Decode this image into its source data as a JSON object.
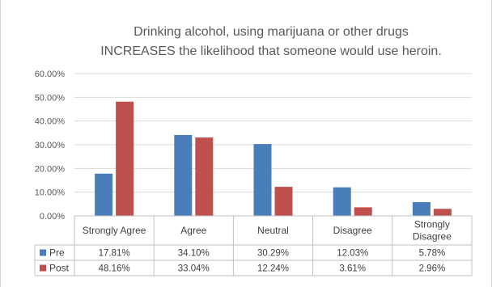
{
  "chart_data": {
    "type": "bar",
    "title_lines": [
      "Drinking alcohol, using marijuana or other drugs",
      "INCREASES the likelihood that someone would use heroin."
    ],
    "categories": [
      [
        "Strongly Agree"
      ],
      [
        "Agree"
      ],
      [
        "Neutral"
      ],
      [
        "Disagree"
      ],
      [
        "Strongly",
        "Disagree"
      ]
    ],
    "series": [
      {
        "name": "Pre",
        "color": "#4a7ebb",
        "values": [
          17.81,
          34.1,
          30.29,
          12.03,
          5.78
        ],
        "labels": [
          "17.81%",
          "34.10%",
          "30.29%",
          "12.03%",
          "5.78%"
        ]
      },
      {
        "name": "Post",
        "color": "#c0504d",
        "values": [
          48.16,
          33.04,
          12.24,
          3.61,
          2.96
        ],
        "labels": [
          "48.16%",
          "33.04%",
          "12.24%",
          "3.61%",
          "2.96%"
        ]
      }
    ],
    "ylim": [
      0,
      60
    ],
    "yticks": [
      "0.00%",
      "10.00%",
      "20.00%",
      "30.00%",
      "40.00%",
      "50.00%",
      "60.00%"
    ],
    "grid": true,
    "legend": "data-table-left"
  }
}
